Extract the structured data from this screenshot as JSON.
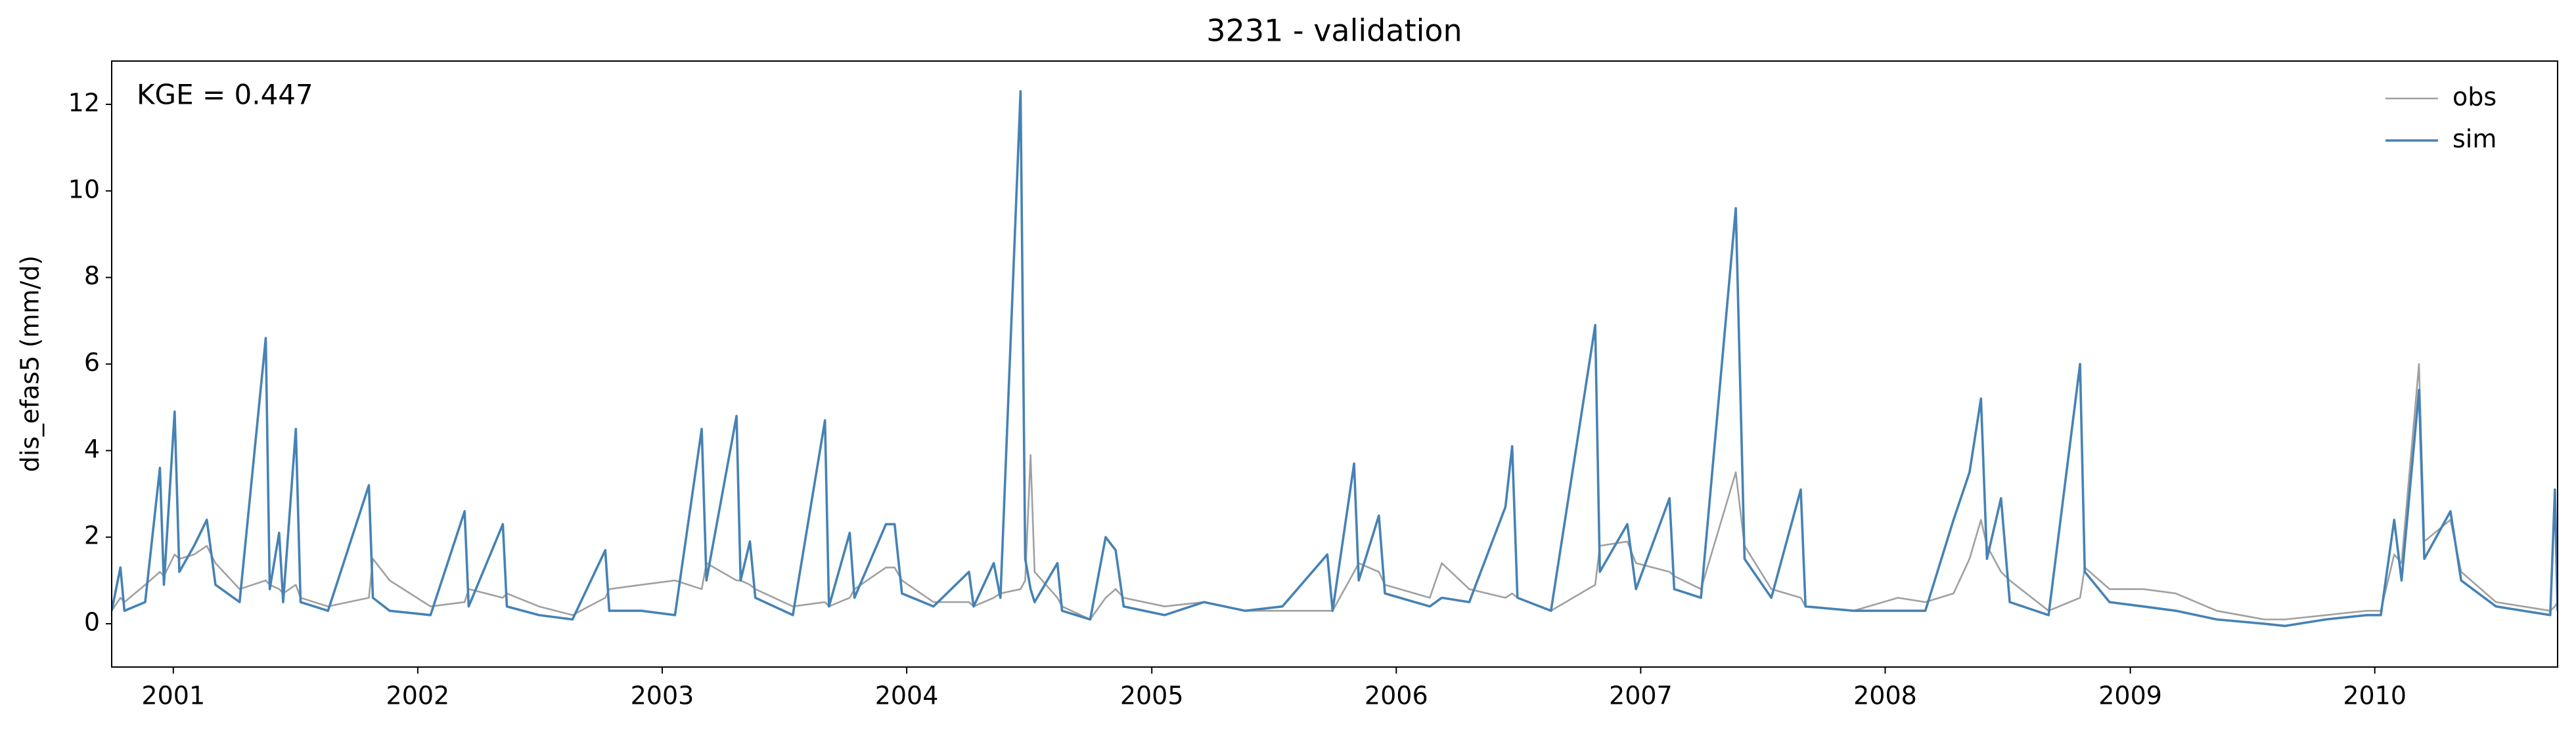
{
  "chart_data": {
    "type": "line",
    "title": "3231 - validation",
    "ylabel": "dis_efas5 (mm/d)",
    "annotation": "KGE = 0.447",
    "legend": "upper right",
    "xlim": [
      "2000-10-01",
      "2010-10-01"
    ],
    "ylim": [
      -1,
      13
    ],
    "yticks": [
      0,
      2,
      4,
      6,
      8,
      10,
      12
    ],
    "xticks": [
      {
        "value": "2001-01-01",
        "label": "2001"
      },
      {
        "value": "2002-01-01",
        "label": "2002"
      },
      {
        "value": "2003-01-01",
        "label": "2003"
      },
      {
        "value": "2004-01-01",
        "label": "2004"
      },
      {
        "value": "2005-01-01",
        "label": "2005"
      },
      {
        "value": "2006-01-01",
        "label": "2006"
      },
      {
        "value": "2007-01-01",
        "label": "2007"
      },
      {
        "value": "2008-01-01",
        "label": "2008"
      },
      {
        "value": "2009-01-01",
        "label": "2009"
      },
      {
        "value": "2010-01-01",
        "label": "2010"
      }
    ],
    "x": [
      "2000-10-01",
      "2000-10-14",
      "2000-10-20",
      "2000-11-20",
      "2000-12-12",
      "2000-12-18",
      "2001-01-03",
      "2001-01-10",
      "2001-02-01",
      "2001-02-20",
      "2001-03-05",
      "2001-04-10",
      "2001-05-19",
      "2001-05-25",
      "2001-06-08",
      "2001-06-14",
      "2001-07-03",
      "2001-07-10",
      "2001-08-20",
      "2001-10-20",
      "2001-10-26",
      "2001-11-20",
      "2002-01-20",
      "2002-03-12",
      "2002-03-18",
      "2002-05-08",
      "2002-05-14",
      "2002-07-01",
      "2002-08-20",
      "2002-10-08",
      "2002-10-14",
      "2002-12-01",
      "2003-01-20",
      "2003-03-01",
      "2003-03-08",
      "2003-04-22",
      "2003-04-28",
      "2003-05-12",
      "2003-05-20",
      "2003-07-15",
      "2003-09-01",
      "2003-09-07",
      "2003-10-08",
      "2003-10-15",
      "2003-12-01",
      "2003-12-14",
      "2003-12-25",
      "2004-02-10",
      "2004-04-03",
      "2004-04-10",
      "2004-05-10",
      "2004-05-20",
      "2004-06-19",
      "2004-06-26",
      "2004-07-04",
      "2004-07-10",
      "2004-08-13",
      "2004-08-20",
      "2004-10-01",
      "2004-10-24",
      "2004-11-08",
      "2004-11-20",
      "2005-01-20",
      "2005-03-20",
      "2005-05-20",
      "2005-07-15",
      "2005-09-20",
      "2005-09-28",
      "2005-10-30",
      "2005-11-06",
      "2005-12-06",
      "2005-12-15",
      "2006-02-20",
      "2006-03-10",
      "2006-04-20",
      "2006-06-13",
      "2006-06-23",
      "2006-07-01",
      "2006-08-20",
      "2006-10-25",
      "2006-11-01",
      "2006-12-12",
      "2006-12-25",
      "2007-02-13",
      "2007-02-20",
      "2007-04-01",
      "2007-05-23",
      "2007-06-05",
      "2007-07-15",
      "2007-08-28",
      "2007-09-04",
      "2007-11-15",
      "2008-01-20",
      "2008-03-01",
      "2008-04-12",
      "2008-05-06",
      "2008-05-23",
      "2008-06-01",
      "2008-06-22",
      "2008-07-05",
      "2008-09-01",
      "2008-10-18",
      "2008-10-25",
      "2008-12-01",
      "2009-01-20",
      "2009-03-10",
      "2009-05-10",
      "2009-07-20",
      "2009-08-20",
      "2009-10-20",
      "2009-12-20",
      "2010-01-10",
      "2010-01-30",
      "2010-02-10",
      "2010-03-08",
      "2010-03-16",
      "2010-04-24",
      "2010-05-10",
      "2010-07-01",
      "2010-09-20",
      "2010-09-27",
      "2010-10-01"
    ],
    "series": [
      {
        "name": "obs",
        "color": "#a0a0a0",
        "values": [
          0.3,
          0.6,
          0.5,
          0.9,
          1.2,
          1.1,
          1.6,
          1.5,
          1.6,
          1.8,
          1.4,
          0.8,
          1.0,
          0.9,
          0.8,
          0.7,
          0.9,
          0.6,
          0.4,
          0.6,
          1.5,
          1.0,
          0.4,
          0.5,
          0.8,
          0.6,
          0.7,
          0.4,
          0.2,
          0.6,
          0.8,
          0.9,
          1.0,
          0.8,
          1.4,
          1.0,
          1.0,
          0.9,
          0.8,
          0.4,
          0.5,
          0.4,
          0.6,
          0.8,
          1.3,
          1.3,
          1.0,
          0.5,
          0.5,
          0.4,
          0.6,
          0.7,
          0.8,
          1.0,
          3.9,
          1.2,
          0.6,
          0.4,
          0.1,
          0.6,
          0.8,
          0.6,
          0.4,
          0.5,
          0.3,
          0.3,
          0.3,
          0.3,
          1.2,
          1.4,
          1.2,
          0.9,
          0.6,
          1.4,
          0.8,
          0.6,
          0.7,
          0.6,
          0.3,
          0.9,
          1.8,
          1.9,
          1.4,
          1.2,
          1.1,
          0.8,
          3.5,
          1.8,
          0.8,
          0.6,
          0.4,
          0.3,
          0.6,
          0.5,
          0.7,
          1.5,
          2.4,
          1.8,
          1.2,
          1.0,
          0.3,
          0.6,
          1.3,
          0.8,
          0.8,
          0.7,
          0.3,
          0.1,
          0.1,
          0.2,
          0.3,
          0.3,
          1.6,
          1.4,
          6.0,
          1.9,
          2.4,
          1.2,
          0.5,
          0.3,
          0.4,
          0.5
        ]
      },
      {
        "name": "sim",
        "color": "#4682b4",
        "values": [
          0.3,
          1.3,
          0.3,
          0.5,
          3.6,
          0.9,
          4.9,
          1.2,
          1.8,
          2.4,
          0.9,
          0.5,
          6.6,
          0.8,
          2.1,
          0.5,
          4.5,
          0.5,
          0.3,
          3.2,
          0.6,
          0.3,
          0.2,
          2.6,
          0.4,
          2.3,
          0.4,
          0.2,
          0.1,
          1.7,
          0.3,
          0.3,
          0.2,
          4.5,
          1.0,
          4.8,
          1.0,
          1.9,
          0.6,
          0.2,
          4.7,
          0.4,
          2.1,
          0.6,
          2.3,
          2.3,
          0.7,
          0.4,
          1.2,
          0.4,
          1.4,
          0.6,
          12.3,
          1.5,
          0.8,
          0.5,
          1.4,
          0.3,
          0.1,
          2.0,
          1.7,
          0.4,
          0.2,
          0.5,
          0.3,
          0.4,
          1.6,
          0.3,
          3.7,
          1.0,
          2.5,
          0.7,
          0.4,
          0.6,
          0.5,
          2.7,
          4.1,
          0.6,
          0.3,
          6.9,
          1.2,
          2.3,
          0.8,
          2.9,
          0.8,
          0.6,
          9.6,
          1.5,
          0.6,
          3.1,
          0.4,
          0.3,
          0.3,
          0.3,
          2.4,
          3.5,
          5.2,
          1.5,
          2.9,
          0.5,
          0.2,
          6.0,
          1.2,
          0.5,
          0.4,
          0.3,
          0.1,
          0.0,
          -0.05,
          0.1,
          0.2,
          0.2,
          2.4,
          1.0,
          5.4,
          1.5,
          2.6,
          1.0,
          0.4,
          0.2,
          3.1,
          0.3
        ]
      }
    ]
  }
}
